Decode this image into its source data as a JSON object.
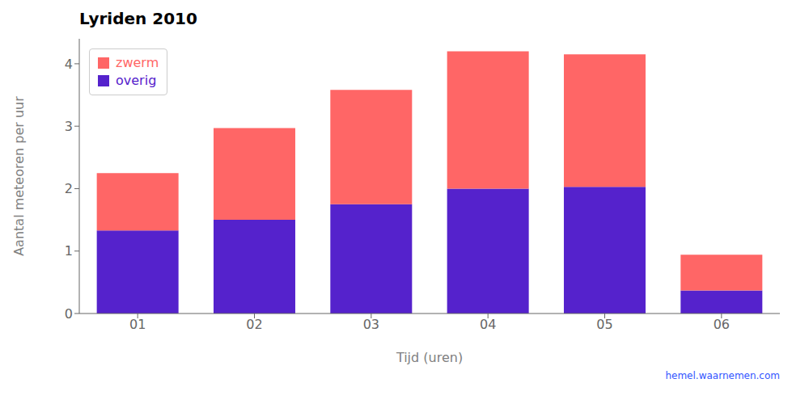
{
  "chart_data": {
    "type": "bar",
    "title": "Lyriden 2010",
    "x_label": "Tijd (uren)",
    "y_label": "Aantal meteoren per uur",
    "categories": [
      "01",
      "02",
      "03",
      "04",
      "05",
      "06"
    ],
    "series": [
      {
        "name": "overig",
        "color": "#5522cc",
        "values": [
          1.33,
          1.5,
          1.75,
          2.0,
          2.03,
          0.37
        ]
      },
      {
        "name": "zwerm",
        "color": "#ff6666",
        "values": [
          0.92,
          1.47,
          1.83,
          2.2,
          2.12,
          0.57
        ]
      }
    ],
    "stacked": true,
    "ylim": [
      0,
      4.4
    ],
    "yticks": [
      0,
      1,
      2,
      3,
      4
    ],
    "grid": false,
    "legend": "upper left",
    "annotations": [
      {
        "text": "hemel.waarnemen.com",
        "color": "#3355ff"
      }
    ]
  }
}
